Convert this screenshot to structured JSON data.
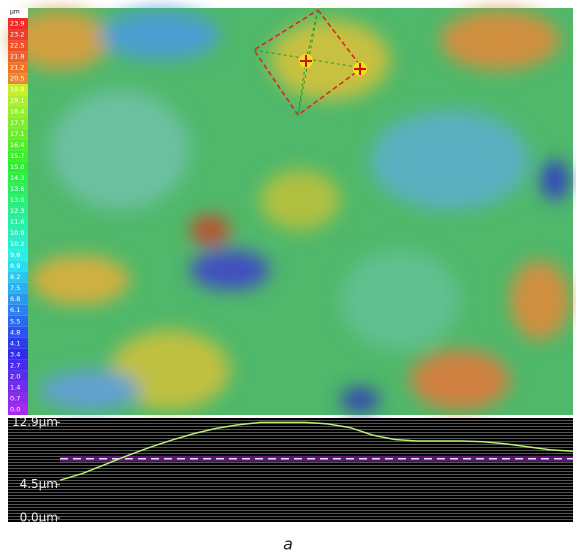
{
  "colorbar": {
    "unit": "µm",
    "labels": [
      "23.9",
      "23.2",
      "22.5",
      "21.8",
      "21.2",
      "20.5",
      "19.8",
      "19.1",
      "18.4",
      "17.7",
      "17.1",
      "16.4",
      "15.7",
      "15.0",
      "14.3",
      "13.6",
      "13.0",
      "12.3",
      "11.6",
      "10.9",
      "10.2",
      "9.6",
      "8.9",
      "8.2",
      "7.5",
      "6.8",
      "6.1",
      "5.5",
      "4.8",
      "4.1",
      "3.4",
      "2.7",
      "2.0",
      "1.4",
      "0.7",
      "0.0"
    ]
  },
  "chart_data": {
    "type": "line",
    "categories": [
      null,
      null,
      null,
      null,
      null,
      null,
      null,
      null,
      null,
      null,
      null,
      null,
      null,
      null,
      null,
      null,
      null,
      null,
      null,
      null,
      null,
      null,
      null,
      null
    ],
    "series": [
      {
        "color": "#b8f070",
        "values": [
          5.1,
          6.0,
          7.2,
          8.4,
          9.5,
          10.5,
          11.4,
          12.1,
          12.6,
          12.9,
          12.9,
          12.9,
          12.7,
          12.2,
          11.2,
          10.6,
          10.4,
          10.4,
          10.4,
          10.3,
          10.0,
          9.6,
          9.2,
          9.0
        ]
      }
    ],
    "reference": 8.0,
    "ylim": [
      0,
      13.5
    ],
    "yticks": [
      {
        "value": 0,
        "label": "0.0µm"
      },
      {
        "value": 4.5,
        "label": "4.5µm"
      },
      {
        "value": 12.9,
        "label": "12.9µm"
      }
    ]
  },
  "caption": "a"
}
